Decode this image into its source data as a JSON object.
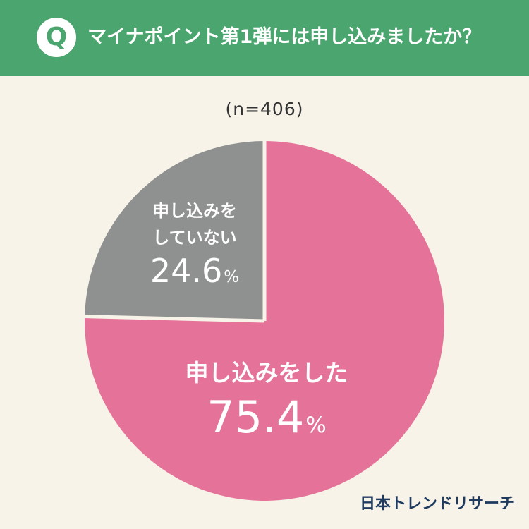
{
  "header": {
    "badge": "Q",
    "question": "マイナポイント第1弾には申し込みましたか？",
    "color": "#4aa66e"
  },
  "sample_size": "(n=406)",
  "chart_data": {
    "type": "pie",
    "title": "マイナポイント第1弾には申し込みましたか？",
    "slices": [
      {
        "label": "申し込みをした",
        "value": 75.4,
        "value_text": "75.4",
        "color": "#e57399"
      },
      {
        "label_lines": [
          "申し込みを",
          "していない"
        ],
        "value": 24.6,
        "value_text": "24.6",
        "color": "#8f9090"
      }
    ],
    "unit": "%",
    "start": "12 o'clock",
    "direction": "clockwise"
  },
  "footer": {
    "logo": "日本トレンドリサーチ"
  },
  "colors": {
    "background": "#f7f3e8",
    "separator": "#f7f3e8",
    "label_text": "#ffffff"
  }
}
